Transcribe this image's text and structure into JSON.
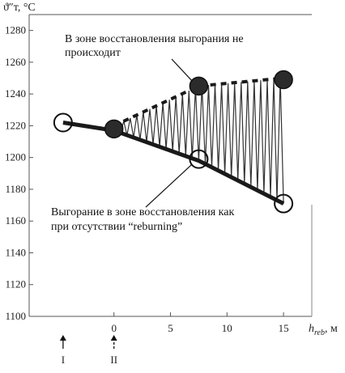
{
  "chart_data": {
    "type": "line",
    "title": "",
    "ylabel": "ϑ″т, °C",
    "xlabel": "h_reb, м",
    "xlabel_base": "h",
    "xlabel_sub": "reb",
    "xlabel_unit": ", м",
    "ylim": [
      1100,
      1290
    ],
    "xlim": [
      -7.5,
      17.5
    ],
    "yticks": [
      1100,
      1120,
      1140,
      1160,
      1180,
      1200,
      1220,
      1240,
      1260,
      1280
    ],
    "xticks": [
      0,
      5,
      10,
      15
    ],
    "grid": false,
    "series": [
      {
        "style": "thick-solid",
        "x": [
          -4.5,
          0,
          7.5,
          15
        ],
        "y": [
          1222,
          1217,
          1198,
          1171
        ]
      },
      {
        "style": "dashed",
        "x": [
          0,
          7.5,
          15
        ],
        "y": [
          1220,
          1245,
          1250
        ]
      }
    ],
    "oscillation": {
      "x_start": 0,
      "x_end": 15,
      "cycles": 26
    },
    "markers": [
      {
        "type": "open-circle",
        "x": -4.5,
        "y": 1222
      },
      {
        "type": "filled-circle",
        "x": 0,
        "y": 1218
      },
      {
        "type": "filled-circle",
        "x": 7.5,
        "y": 1245
      },
      {
        "type": "open-circle",
        "x": 7.5,
        "y": 1199
      },
      {
        "type": "filled-circle",
        "x": 15,
        "y": 1249
      },
      {
        "type": "open-circle",
        "x": 15,
        "y": 1171
      }
    ],
    "annotations": [
      {
        "lines": [
          "В зоне восстановления выгорания не",
          "происходит"
        ],
        "arrow_to": {
          "x": 7.5,
          "y": 1245
        }
      },
      {
        "lines": [
          "Выгорание в зоне восстановления как",
          "при отсутствии “reburning”"
        ],
        "arrow_to": {
          "x": 7.5,
          "y": 1199
        }
      }
    ],
    "zone_markers": [
      {
        "label": "I",
        "x": -4.5,
        "arrow": "solid"
      },
      {
        "label": "II",
        "x": 0,
        "arrow": "dashed"
      }
    ]
  }
}
